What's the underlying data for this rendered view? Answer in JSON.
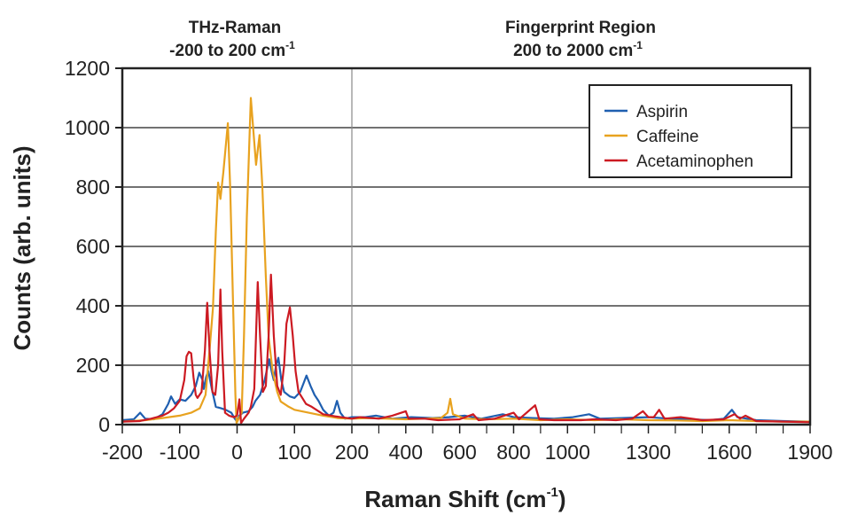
{
  "chart_data": {
    "type": "line",
    "xlabel": "Raman Shift (cm",
    "xlabel_sup": "-1",
    "xlabel_end": ")",
    "ylabel": "Counts (arb. units)",
    "ylim": [
      0,
      1200
    ],
    "yticks": [
      0,
      200,
      400,
      600,
      800,
      1000,
      1200
    ],
    "xaxis_segments": [
      {
        "range": [
          -200,
          200
        ],
        "ticks": [
          -200,
          -100,
          0,
          100,
          200
        ]
      },
      {
        "range": [
          200,
          1900
        ],
        "ticks": [
          400,
          600,
          800,
          1000,
          1300,
          1600,
          1900
        ],
        "minor_step": 100
      }
    ],
    "regions": [
      {
        "title": "THz-Raman",
        "subtitle": "-200 to 200 cm",
        "sup": "-1"
      },
      {
        "title": "Fingerprint Region",
        "subtitle": "200 to 2000 cm",
        "sup": "-1"
      }
    ],
    "grid": "horizontal",
    "legend_position": "top-right",
    "series": [
      {
        "name": "Aspirin",
        "color": "#1f5fb0",
        "points": [
          [
            -200,
            15
          ],
          [
            -180,
            18
          ],
          [
            -169,
            40
          ],
          [
            -160,
            20
          ],
          [
            -145,
            18
          ],
          [
            -130,
            35
          ],
          [
            -120,
            70
          ],
          [
            -115,
            95
          ],
          [
            -108,
            70
          ],
          [
            -100,
            85
          ],
          [
            -90,
            80
          ],
          [
            -80,
            100
          ],
          [
            -72,
            130
          ],
          [
            -66,
            175
          ],
          [
            -60,
            150
          ],
          [
            -58,
            120
          ],
          [
            -54,
            160
          ],
          [
            -50,
            180
          ],
          [
            -44,
            120
          ],
          [
            -37,
            60
          ],
          [
            -28,
            55
          ],
          [
            -20,
            50
          ],
          [
            -10,
            40
          ],
          [
            -4,
            20
          ],
          [
            0,
            10
          ],
          [
            4,
            30
          ],
          [
            10,
            40
          ],
          [
            20,
            45
          ],
          [
            27,
            60
          ],
          [
            32,
            80
          ],
          [
            40,
            100
          ],
          [
            48,
            150
          ],
          [
            56,
            220
          ],
          [
            60,
            180
          ],
          [
            64,
            150
          ],
          [
            68,
            200
          ],
          [
            72,
            225
          ],
          [
            77,
            150
          ],
          [
            82,
            110
          ],
          [
            92,
            95
          ],
          [
            100,
            90
          ],
          [
            110,
            110
          ],
          [
            116,
            140
          ],
          [
            121,
            165
          ],
          [
            128,
            130
          ],
          [
            135,
            100
          ],
          [
            142,
            80
          ],
          [
            150,
            50
          ],
          [
            160,
            30
          ],
          [
            168,
            40
          ],
          [
            174,
            80
          ],
          [
            180,
            40
          ],
          [
            188,
            20
          ],
          [
            200,
            25
          ],
          [
            250,
            25
          ],
          [
            290,
            30
          ],
          [
            350,
            20
          ],
          [
            420,
            25
          ],
          [
            500,
            22
          ],
          [
            560,
            25
          ],
          [
            620,
            30
          ],
          [
            680,
            20
          ],
          [
            760,
            35
          ],
          [
            800,
            25
          ],
          [
            870,
            22
          ],
          [
            950,
            20
          ],
          [
            1020,
            25
          ],
          [
            1080,
            35
          ],
          [
            1120,
            20
          ],
          [
            1200,
            22
          ],
          [
            1300,
            25
          ],
          [
            1380,
            20
          ],
          [
            1450,
            18
          ],
          [
            1530,
            15
          ],
          [
            1580,
            20
          ],
          [
            1610,
            50
          ],
          [
            1630,
            25
          ],
          [
            1700,
            15
          ],
          [
            1800,
            12
          ],
          [
            1900,
            10
          ]
        ]
      },
      {
        "name": "Caffeine",
        "color": "#e8a21f",
        "points": [
          [
            -200,
            10
          ],
          [
            -160,
            15
          ],
          [
            -130,
            22
          ],
          [
            -100,
            30
          ],
          [
            -80,
            40
          ],
          [
            -65,
            55
          ],
          [
            -55,
            100
          ],
          [
            -48,
            250
          ],
          [
            -42,
            394
          ],
          [
            -37,
            650
          ],
          [
            -33,
            815
          ],
          [
            -29,
            760
          ],
          [
            -24,
            850
          ],
          [
            -16,
            1015
          ],
          [
            -12,
            800
          ],
          [
            -7,
            400
          ],
          [
            -3,
            100
          ],
          [
            -1,
            5
          ],
          [
            3,
            20
          ],
          [
            8,
            40
          ],
          [
            12,
            300
          ],
          [
            17,
            700
          ],
          [
            24,
            1100
          ],
          [
            28,
            1000
          ],
          [
            33,
            875
          ],
          [
            39,
            975
          ],
          [
            44,
            800
          ],
          [
            50,
            500
          ],
          [
            55,
            295
          ],
          [
            62,
            180
          ],
          [
            70,
            110
          ],
          [
            76,
            78
          ],
          [
            90,
            60
          ],
          [
            100,
            50
          ],
          [
            120,
            42
          ],
          [
            150,
            30
          ],
          [
            175,
            22
          ],
          [
            200,
            20
          ],
          [
            260,
            22
          ],
          [
            330,
            20
          ],
          [
            400,
            18
          ],
          [
            470,
            20
          ],
          [
            530,
            22
          ],
          [
            555,
            40
          ],
          [
            565,
            87
          ],
          [
            575,
            35
          ],
          [
            620,
            20
          ],
          [
            700,
            18
          ],
          [
            800,
            20
          ],
          [
            900,
            15
          ],
          [
            1000,
            18
          ],
          [
            1100,
            15
          ],
          [
            1200,
            18
          ],
          [
            1300,
            15
          ],
          [
            1400,
            14
          ],
          [
            1500,
            12
          ],
          [
            1600,
            15
          ],
          [
            1700,
            12
          ],
          [
            1800,
            10
          ],
          [
            1900,
            10
          ]
        ]
      },
      {
        "name": "Acetaminophen",
        "color": "#cc1a22",
        "points": [
          [
            -200,
            10
          ],
          [
            -170,
            12
          ],
          [
            -150,
            20
          ],
          [
            -130,
            30
          ],
          [
            -120,
            40
          ],
          [
            -110,
            55
          ],
          [
            -100,
            80
          ],
          [
            -92,
            150
          ],
          [
            -88,
            230
          ],
          [
            -84,
            245
          ],
          [
            -80,
            240
          ],
          [
            -76,
            160
          ],
          [
            -72,
            100
          ],
          [
            -69,
            90
          ],
          [
            -62,
            110
          ],
          [
            -56,
            250
          ],
          [
            -52,
            410
          ],
          [
            -48,
            250
          ],
          [
            -43,
            110
          ],
          [
            -38,
            100
          ],
          [
            -33,
            200
          ],
          [
            -29,
            455
          ],
          [
            -26,
            250
          ],
          [
            -21,
            40
          ],
          [
            -14,
            30
          ],
          [
            -6,
            25
          ],
          [
            0,
            30
          ],
          [
            4,
            85
          ],
          [
            7,
            5
          ],
          [
            12,
            20
          ],
          [
            20,
            40
          ],
          [
            24,
            60
          ],
          [
            30,
            120
          ],
          [
            36,
            480
          ],
          [
            40,
            300
          ],
          [
            45,
            110
          ],
          [
            50,
            130
          ],
          [
            55,
            300
          ],
          [
            59,
            505
          ],
          [
            64,
            300
          ],
          [
            70,
            130
          ],
          [
            76,
            100
          ],
          [
            82,
            200
          ],
          [
            86,
            340
          ],
          [
            92,
            395
          ],
          [
            97,
            300
          ],
          [
            102,
            180
          ],
          [
            107,
            110
          ],
          [
            120,
            70
          ],
          [
            130,
            60
          ],
          [
            150,
            35
          ],
          [
            170,
            28
          ],
          [
            200,
            20
          ],
          [
            230,
            25
          ],
          [
            300,
            20
          ],
          [
            350,
            30
          ],
          [
            400,
            45
          ],
          [
            410,
            20
          ],
          [
            470,
            20
          ],
          [
            520,
            15
          ],
          [
            600,
            18
          ],
          [
            650,
            35
          ],
          [
            670,
            15
          ],
          [
            730,
            20
          ],
          [
            800,
            40
          ],
          [
            820,
            18
          ],
          [
            880,
            65
          ],
          [
            895,
            18
          ],
          [
            950,
            15
          ],
          [
            1050,
            15
          ],
          [
            1100,
            18
          ],
          [
            1180,
            15
          ],
          [
            1240,
            20
          ],
          [
            1280,
            45
          ],
          [
            1300,
            25
          ],
          [
            1320,
            25
          ],
          [
            1340,
            50
          ],
          [
            1360,
            20
          ],
          [
            1420,
            25
          ],
          [
            1500,
            15
          ],
          [
            1580,
            18
          ],
          [
            1620,
            35
          ],
          [
            1640,
            20
          ],
          [
            1660,
            30
          ],
          [
            1700,
            12
          ],
          [
            1800,
            10
          ],
          [
            1900,
            8
          ]
        ]
      }
    ]
  }
}
